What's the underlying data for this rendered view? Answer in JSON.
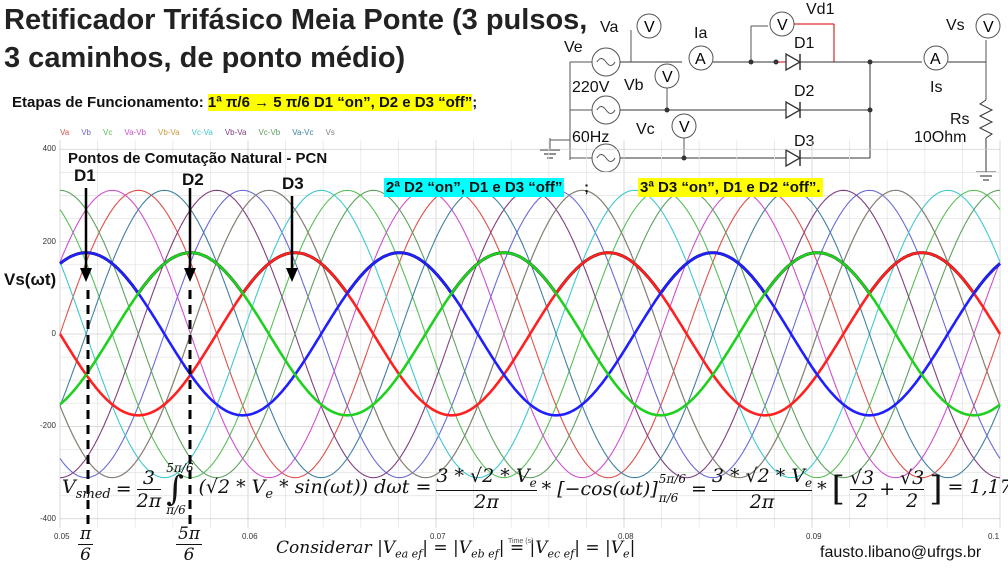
{
  "title": {
    "line1": "Retificador Trifásico Meia Ponte (3 pulsos,",
    "line2": "3 caminhos, de ponto médio)"
  },
  "etapas": {
    "label": "Etapas de Funcionamento:",
    "stage1": "1ª π/6 → 5 π/6  D1 “on”,  D2 e D3 “off”",
    "suffix": ";",
    "stage2": "2ª D2 “on”,  D1 e D3 “off”",
    "stage2_suffix": ";",
    "stage3": "3ª D3 “on”,  D1 e D2 “off”."
  },
  "pcn": "Pontos de Comutação Natural - PCN",
  "markers": [
    "D1",
    "D2",
    "D3"
  ],
  "vs_label": "Vs(ωt)",
  "circuit": {
    "Va": "Va",
    "Ve": "Ve",
    "Vb": "Vb",
    "Vc": "Vc",
    "Ia": "Ia",
    "Vd1": "Vd1",
    "D1": "D1",
    "D2": "D2",
    "D3": "D3",
    "Vs": "Vs",
    "Is": "Is",
    "voltage": "220V",
    "freq": "60Hz",
    "Rs": "Rs",
    "Rval": "10Ohm",
    "V": "V",
    "A": "A"
  },
  "equation": "V_smed = (3/2π) ∫ (√2 * V_e * sin(ωt)) dωt = (3 * √2 * V_e / 2π) * [−cos(ωt)] = (3 * √2 * V_e / 2π) * [√3/2 + √3/2] = 1,17 * V_e",
  "equation_parts": {
    "lhs": "V",
    "lhs_sub": "smed",
    "eq1": "=",
    "f1n": "3",
    "f1d": "2π",
    "int_up": "5π/6",
    "int_lo": "π/6",
    "body1": "(√2 * V",
    "body1_sub": "e",
    "body1b": " * sin(ωt)) dωt =",
    "f2n": "3 * √2 * V",
    "f2n_sub": "e",
    "f2d": "2π",
    "mid": "* [−cos(ωt)]",
    "mid_up": "5π/6",
    "mid_lo": "π/6",
    "eq3": "=",
    "f3n": "3 * √2 * V",
    "f3n_sub": "e",
    "f3d": "2π",
    "times": "*",
    "r1n": "√3",
    "r1d": "2",
    "plus": "+",
    "r2n": "√3",
    "r2d": "2",
    "result": "= 1,17 * V",
    "result_sub": "e"
  },
  "considerar": "Considerar |V_ea ef| = |V_eb ef| = |V_ec ef| = |V_e|",
  "considerar_parts": {
    "word": "Considerar",
    "t1": "|V",
    "t1s": "ea ef",
    "t2": "| = |V",
    "t2s": "eb ef",
    "t3": "| = |V",
    "t3s": "ec ef",
    "t4": "| = |V",
    "t4s": "e",
    "t5": "|"
  },
  "x_overlay": "Time (s)",
  "bottom_fracs": [
    {
      "n": "π",
      "d": "6"
    },
    {
      "n": "5π",
      "d": "6"
    }
  ],
  "email": "fausto.libano@ufrgs.br",
  "chart_data": {
    "type": "line",
    "title": "",
    "xlabel": "",
    "ylabel": "Vs(ωt)",
    "xlim": [
      0.05,
      0.1
    ],
    "ylim": [
      -420,
      420
    ],
    "x_ticks": [
      "0.05",
      "0.06",
      "0.07",
      "0.08",
      "0.09",
      "0.1"
    ],
    "y_ticks": [
      "400",
      "200",
      "0",
      "-200",
      "-400"
    ],
    "grid": true,
    "frequency_hz": 60,
    "series": [
      {
        "name": "Va",
        "color": "#e0504a",
        "amplitude": 311,
        "phase_deg": 0
      },
      {
        "name": "Vb",
        "color": "#6a6ad8",
        "amplitude": 311,
        "phase_deg": -120
      },
      {
        "name": "Vc",
        "color": "#58c058",
        "amplitude": 311,
        "phase_deg": 120
      },
      {
        "name": "Va-Vb",
        "color": "#d050d0",
        "amplitude": 311,
        "phase_deg": 30
      },
      {
        "name": "Vb-Va",
        "color": "#c89a40",
        "amplitude": 311,
        "phase_deg": -150
      },
      {
        "name": "Vc-Va",
        "color": "#40c8d0",
        "amplitude": 311,
        "phase_deg": 150
      },
      {
        "name": "Vb-Va",
        "color": "#804080",
        "amplitude": 311,
        "phase_deg": -90
      },
      {
        "name": "Vc-Vb",
        "color": "#60a060",
        "amplitude": 311,
        "phase_deg": 90
      },
      {
        "name": "Va-Vc",
        "color": "#4080a0",
        "amplitude": 311,
        "phase_deg": -30
      },
      {
        "name": "Vs",
        "color": "#808080",
        "amplitude": 311,
        "phase_deg": 210
      }
    ],
    "highlight": [
      {
        "name": "Vs_out",
        "color": "#000000",
        "amplitude": 176,
        "kind": "max"
      },
      {
        "name": "Va_hl",
        "color": "#ff2020",
        "amplitude": 176,
        "phase_deg": 180
      },
      {
        "name": "Vb_hl",
        "color": "#2020ff",
        "amplitude": 176,
        "phase_deg": 60
      },
      {
        "name": "Vc_hl",
        "color": "#20d020",
        "amplitude": 176,
        "phase_deg": -60
      }
    ]
  }
}
